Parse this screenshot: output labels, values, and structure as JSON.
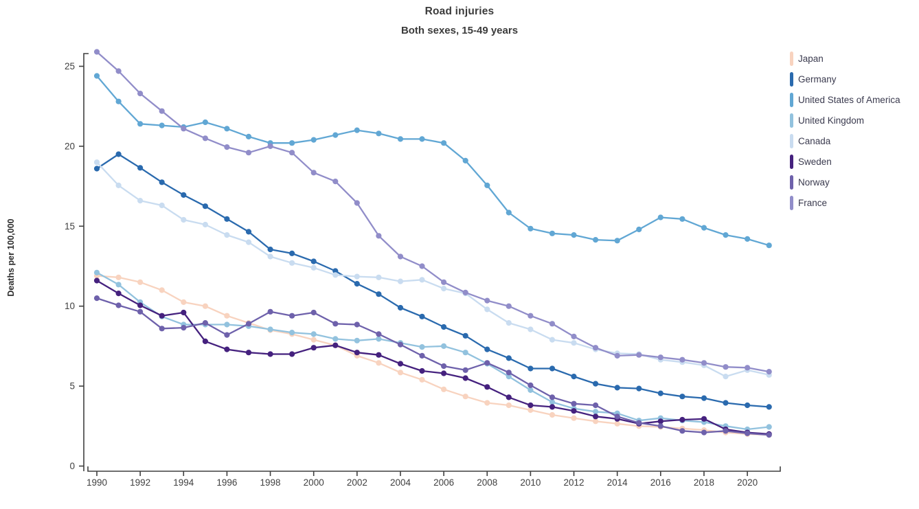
{
  "header": {
    "title": "Road injuries",
    "subtitle": "Both sexes, 15-49 years"
  },
  "chart_data": {
    "type": "line",
    "title": "Road injuries",
    "subtitle": "Both sexes, 15-49 years",
    "xlabel": "",
    "ylabel": "Deaths per 100,000",
    "ylim": [
      0,
      26
    ],
    "grid": false,
    "legend_position": "right",
    "marker": "circle",
    "axis_color": "#3f3f3f",
    "x": [
      1990,
      1991,
      1992,
      1993,
      1994,
      1995,
      1996,
      1997,
      1998,
      1999,
      2000,
      2001,
      2002,
      2003,
      2004,
      2005,
      2006,
      2007,
      2008,
      2009,
      2010,
      2011,
      2012,
      2013,
      2014,
      2015,
      2016,
      2017,
      2018,
      2019,
      2020,
      2021
    ],
    "xticks": [
      1990,
      1992,
      1994,
      1996,
      1998,
      2000,
      2002,
      2004,
      2006,
      2008,
      2010,
      2012,
      2014,
      2016,
      2018,
      2020
    ],
    "yticks": [
      0,
      5,
      10,
      15,
      20,
      25
    ],
    "series": [
      {
        "name": "Japan",
        "color": "#f8d3bf",
        "values": [
          11.9,
          11.8,
          11.5,
          11.0,
          10.25,
          10.0,
          9.4,
          8.95,
          8.5,
          8.25,
          7.9,
          7.55,
          6.9,
          6.45,
          5.85,
          5.4,
          4.8,
          4.35,
          3.95,
          3.8,
          3.5,
          3.2,
          3.0,
          2.8,
          2.65,
          2.5,
          2.45,
          2.35,
          2.25,
          2.1,
          2.0,
          1.95
        ]
      },
      {
        "name": "Germany",
        "color": "#2a6aae",
        "values": [
          18.6,
          19.5,
          18.65,
          17.75,
          16.95,
          16.25,
          15.45,
          14.65,
          13.55,
          13.3,
          12.8,
          12.2,
          11.4,
          10.75,
          9.9,
          9.35,
          8.7,
          8.15,
          7.3,
          6.75,
          6.1,
          6.1,
          5.6,
          5.15,
          4.9,
          4.85,
          4.55,
          4.35,
          4.25,
          3.95,
          3.8,
          3.7
        ]
      },
      {
        "name": "United States of America",
        "color": "#61a7d4",
        "values": [
          24.4,
          22.8,
          21.4,
          21.3,
          21.2,
          21.5,
          21.1,
          20.6,
          20.2,
          20.2,
          20.4,
          20.7,
          21.0,
          20.8,
          20.45,
          20.45,
          20.2,
          19.1,
          17.55,
          15.85,
          14.85,
          14.55,
          14.45,
          14.15,
          14.1,
          14.8,
          15.55,
          15.45,
          14.9,
          14.45,
          14.2,
          13.8
        ]
      },
      {
        "name": "United Kingdom",
        "color": "#92c2de",
        "values": [
          12.1,
          11.35,
          10.25,
          9.35,
          8.85,
          8.85,
          8.85,
          8.75,
          8.55,
          8.35,
          8.25,
          7.95,
          7.85,
          7.95,
          7.7,
          7.45,
          7.5,
          7.1,
          6.4,
          5.6,
          4.75,
          4.0,
          3.6,
          3.4,
          3.3,
          2.85,
          3.0,
          2.85,
          2.75,
          2.5,
          2.3,
          2.45
        ]
      },
      {
        "name": "Canada",
        "color": "#c9dcf0",
        "values": [
          19.0,
          17.55,
          16.6,
          16.3,
          15.4,
          15.1,
          14.45,
          14.0,
          13.1,
          12.7,
          12.4,
          11.95,
          11.85,
          11.8,
          11.55,
          11.65,
          11.1,
          10.8,
          9.8,
          8.95,
          8.55,
          7.9,
          7.7,
          7.3,
          7.05,
          7.0,
          6.65,
          6.5,
          6.3,
          5.6,
          6.0,
          5.7
        ]
      },
      {
        "name": "Sweden",
        "color": "#45217e",
        "values": [
          11.6,
          10.8,
          10.05,
          9.4,
          9.6,
          7.8,
          7.3,
          7.1,
          7.0,
          7.0,
          7.4,
          7.55,
          7.1,
          6.95,
          6.4,
          5.95,
          5.8,
          5.5,
          4.95,
          4.3,
          3.8,
          3.7,
          3.45,
          3.1,
          2.95,
          2.65,
          2.8,
          2.9,
          2.95,
          2.3,
          2.1,
          2.0
        ]
      },
      {
        "name": "Norway",
        "color": "#6e61ab",
        "values": [
          10.5,
          10.05,
          9.65,
          8.6,
          8.65,
          8.95,
          8.2,
          8.9,
          9.65,
          9.4,
          9.6,
          8.9,
          8.85,
          8.25,
          7.6,
          6.9,
          6.25,
          6.0,
          6.45,
          5.85,
          5.05,
          4.3,
          3.9,
          3.8,
          3.1,
          2.7,
          2.5,
          2.2,
          2.1,
          2.2,
          2.05,
          1.95
        ]
      },
      {
        "name": "France",
        "color": "#918dc9",
        "values": [
          25.9,
          24.7,
          23.3,
          22.2,
          21.1,
          20.5,
          19.95,
          19.6,
          20.0,
          19.6,
          18.35,
          17.8,
          16.45,
          14.4,
          13.1,
          12.5,
          11.5,
          10.85,
          10.35,
          10.0,
          9.4,
          8.9,
          8.1,
          7.4,
          6.9,
          6.95,
          6.8,
          6.65,
          6.45,
          6.2,
          6.15,
          5.9
        ]
      }
    ]
  }
}
